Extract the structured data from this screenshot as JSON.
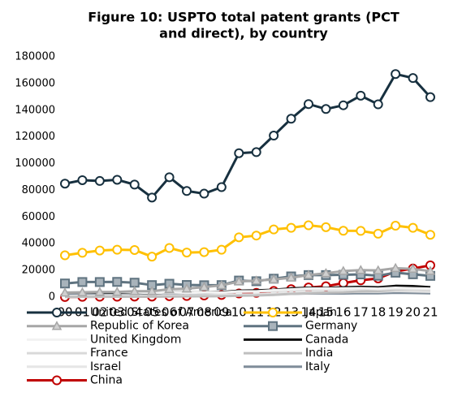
{
  "chart_data": {
    "type": "line",
    "title_lines": [
      "Figure 10: USPTO total patent grants (PCT",
      "and direct), by country"
    ],
    "categories": [
      "00",
      "01",
      "02",
      "03",
      "04",
      "05",
      "06",
      "07",
      "08",
      "09",
      "10",
      "11",
      "12",
      "13",
      "14",
      "15",
      "16",
      "17",
      "18",
      "19",
      "20",
      "21"
    ],
    "ylim": [
      0,
      180000
    ],
    "yticks": [
      0,
      20000,
      40000,
      60000,
      80000,
      100000,
      120000,
      140000,
      160000,
      180000
    ],
    "series": [
      {
        "name": "United States of America",
        "color": "#17303f",
        "marker": "circle",
        "values": [
          85000,
          87600,
          87000,
          87900,
          84300,
          74600,
          89800,
          79500,
          77500,
          82400,
          107800,
          108600,
          121000,
          133600,
          144600,
          140900,
          143700,
          150900,
          144400,
          167100,
          164100,
          149800
        ]
      },
      {
        "name": "Japan",
        "color": "#ffc000",
        "marker": "circle",
        "values": [
          31300,
          33200,
          34900,
          35500,
          35300,
          30300,
          36800,
          33400,
          33700,
          35500,
          44800,
          46100,
          50700,
          51900,
          53800,
          52400,
          49700,
          49600,
          47500,
          53500,
          51900,
          46700
        ]
      },
      {
        "name": "Republic of Korea",
        "color": "#a6a6a6",
        "marker": "triangle",
        "values": [
          3300,
          3500,
          3800,
          3900,
          4400,
          4400,
          5900,
          6300,
          7500,
          8800,
          11700,
          12300,
          13200,
          14500,
          16500,
          17900,
          19500,
          20200,
          20000,
          21700,
          21100,
          19500
        ]
      },
      {
        "name": "Germany",
        "color": "#5f7380",
        "marker": "square",
        "values": [
          10200,
          11300,
          11300,
          11400,
          10800,
          9000,
          10000,
          9100,
          8900,
          9000,
          12400,
          11900,
          13800,
          15500,
          16500,
          16500,
          16700,
          17000,
          16000,
          18300,
          17100,
          15900
        ]
      },
      {
        "name": "United Kingdom",
        "color": "#f2f2f2",
        "values": [
          3700,
          3900,
          3900,
          3900,
          3600,
          3100,
          3600,
          3300,
          3400,
          3400,
          4300,
          4300,
          5200,
          5800,
          6500,
          6400,
          6500,
          6700,
          6300,
          7000,
          6600,
          6300
        ]
      },
      {
        "name": "Canada",
        "color": "#0d0d0d",
        "values": [
          3400,
          3600,
          3400,
          3400,
          3400,
          2900,
          3600,
          3400,
          3400,
          3700,
          4800,
          5000,
          5500,
          6500,
          7000,
          6800,
          7300,
          7700,
          7300,
          8400,
          8200,
          7400
        ]
      },
      {
        "name": "France",
        "color": "#d9d9d9",
        "values": [
          3800,
          4000,
          4000,
          3900,
          3400,
          2900,
          3400,
          3100,
          3200,
          3100,
          4000,
          4200,
          4500,
          5000,
          5500,
          5700,
          5900,
          6300,
          5700,
          6100,
          5600,
          5000
        ]
      },
      {
        "name": "India",
        "color": "#bfbfbf",
        "values": [
          100,
          200,
          200,
          300,
          300,
          400,
          400,
          500,
          600,
          700,
          1100,
          1200,
          1700,
          2400,
          2900,
          3400,
          3600,
          4300,
          4500,
          5500,
          5600,
          5200
        ]
      },
      {
        "name": "Israel",
        "color": "#e6e6e6",
        "values": [
          800,
          1000,
          1100,
          1200,
          1100,
          1000,
          1200,
          1100,
          1200,
          1500,
          1900,
          2000,
          2600,
          3000,
          3500,
          3600,
          3800,
          4000,
          4000,
          4600,
          4300,
          4000
        ]
      },
      {
        "name": "Italy",
        "color": "#7f8c99",
        "values": [
          1700,
          1700,
          1800,
          1800,
          1600,
          1300,
          1600,
          1400,
          1600,
          1500,
          1800,
          1900,
          2100,
          2500,
          2700,
          2800,
          2700,
          3000,
          2900,
          3300,
          3100,
          2900
        ]
      },
      {
        "name": "China",
        "color": "#c00000",
        "marker": "circle",
        "values": [
          100,
          200,
          300,
          300,
          400,
          400,
          700,
          800,
          1200,
          1600,
          2700,
          3200,
          4600,
          5900,
          7200,
          8100,
          10500,
          12600,
          14000,
          19200,
          21400,
          23800
        ]
      }
    ]
  }
}
